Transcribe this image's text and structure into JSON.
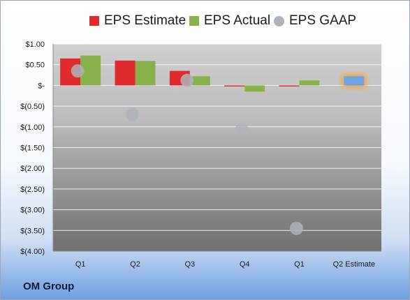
{
  "company": "OM Group",
  "legend": [
    {
      "label": "EPS Estimate",
      "color": "#e02a2e",
      "shape": "square"
    },
    {
      "label": "EPS Actual",
      "color": "#88b04b",
      "shape": "square"
    },
    {
      "label": "EPS GAAP",
      "color": "#aeb3ba",
      "shape": "circle"
    }
  ],
  "chart_data": {
    "type": "bar",
    "categories": [
      "Q1",
      "Q2",
      "Q3",
      "Q4",
      "Q1",
      "Q2 Estimate"
    ],
    "ylim": [
      -4.0,
      1.0
    ],
    "yticks": [
      {
        "value": 1.0,
        "label": "$1.00"
      },
      {
        "value": 0.5,
        "label": "$0.50"
      },
      {
        "value": 0.0,
        "label": "$-"
      },
      {
        "value": -0.5,
        "label": "$(0.50)"
      },
      {
        "value": -1.0,
        "label": "$(1.00)"
      },
      {
        "value": -1.5,
        "label": "$(1.50)"
      },
      {
        "value": -2.0,
        "label": "$(2.00)"
      },
      {
        "value": -2.5,
        "label": "$(2.50)"
      },
      {
        "value": -3.0,
        "label": "$(3.00)"
      },
      {
        "value": -3.5,
        "label": "$(3.50)"
      },
      {
        "value": -4.0,
        "label": "$(4.00)"
      }
    ],
    "grid": true,
    "legend_position": "top",
    "series": [
      {
        "name": "EPS Estimate",
        "type": "bar",
        "color": "#e02a2e",
        "values": [
          0.65,
          0.6,
          0.35,
          -0.02,
          -0.02,
          null
        ]
      },
      {
        "name": "EPS Actual",
        "type": "bar",
        "color": "#88b04b",
        "values": [
          0.72,
          0.59,
          0.22,
          -0.15,
          0.12,
          null
        ]
      },
      {
        "name": "EPS GAAP",
        "type": "scatter",
        "color": "#aeb3ba",
        "values": [
          0.35,
          -0.7,
          0.12,
          -1.07,
          -3.45,
          null
        ]
      }
    ],
    "highlight": {
      "category_index": 5,
      "value": 0.22,
      "color": "#6fa3e6",
      "glow_color": "#f5a54a"
    }
  }
}
